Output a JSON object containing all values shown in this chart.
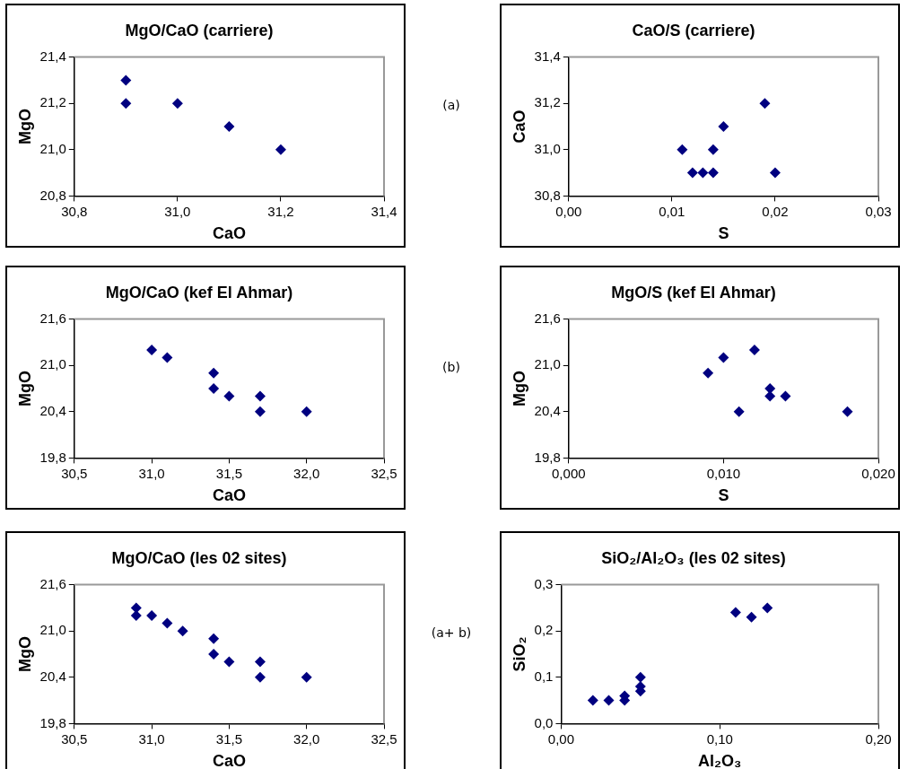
{
  "chart_data": [
    {
      "type": "scatter",
      "title": "MgO/CaO (carriere)",
      "xlabel": "CaO",
      "ylabel": "MgO",
      "marker": "diamond",
      "annotations": [
        "(a)"
      ],
      "series": [
        {
          "color": "#000080",
          "x": [
            30.9,
            30.9,
            31.0,
            31.1,
            31.2
          ],
          "values": [
            21.3,
            21.2,
            21.2,
            21.1,
            21.0
          ]
        }
      ],
      "xlim": [
        30.8,
        31.4
      ],
      "xticks": [
        {
          "value": 30.8,
          "label": "30,8"
        },
        {
          "value": 31.0,
          "label": "31,0"
        },
        {
          "value": 31.2,
          "label": "31,2"
        },
        {
          "value": 31.4,
          "label": "31,4"
        }
      ],
      "ylim": [
        20.8,
        21.4
      ],
      "yticks": [
        {
          "value": 20.8,
          "label": "20,8"
        },
        {
          "value": 21.0,
          "label": "21,0"
        },
        {
          "value": 21.2,
          "label": "21,2"
        },
        {
          "value": 21.4,
          "label": "21,4"
        }
      ]
    },
    {
      "type": "scatter",
      "title": "CaO/S (carriere)",
      "xlabel": "S",
      "ylabel": "CaO",
      "marker": "diamond",
      "series": [
        {
          "color": "#000080",
          "x": [
            0.011,
            0.012,
            0.013,
            0.014,
            0.014,
            0.015,
            0.019,
            0.02
          ],
          "values": [
            31.0,
            30.9,
            30.9,
            30.9,
            31.0,
            31.1,
            31.2,
            30.9
          ]
        }
      ],
      "xlim": [
        0,
        0.03
      ],
      "xticks": [
        {
          "value": 0,
          "label": "0,00"
        },
        {
          "value": 0.01,
          "label": "0,01"
        },
        {
          "value": 0.02,
          "label": "0,02"
        },
        {
          "value": 0.03,
          "label": "0,03"
        }
      ],
      "ylim": [
        30.8,
        31.4
      ],
      "yticks": [
        {
          "value": 30.8,
          "label": "30,8"
        },
        {
          "value": 31.0,
          "label": "31,0"
        },
        {
          "value": 31.2,
          "label": "31,2"
        },
        {
          "value": 31.4,
          "label": "31,4"
        }
      ]
    },
    {
      "type": "scatter",
      "title": "MgO/CaO (kef El Ahmar)",
      "xlabel": "CaO",
      "ylabel": "MgO",
      "marker": "diamond",
      "annotations": [
        "(b)"
      ],
      "series": [
        {
          "color": "#000080",
          "x": [
            31.0,
            31.1,
            31.4,
            31.4,
            31.5,
            31.7,
            31.7,
            32.0
          ],
          "values": [
            21.2,
            21.1,
            20.9,
            20.7,
            20.6,
            20.6,
            20.4,
            20.4
          ]
        }
      ],
      "xlim": [
        30.5,
        32.5
      ],
      "xticks": [
        {
          "value": 30.5,
          "label": "30,5"
        },
        {
          "value": 31.0,
          "label": "31,0"
        },
        {
          "value": 31.5,
          "label": "31,5"
        },
        {
          "value": 32.0,
          "label": "32,0"
        },
        {
          "value": 32.5,
          "label": "32,5"
        }
      ],
      "ylim": [
        19.8,
        21.6
      ],
      "yticks": [
        {
          "value": 19.8,
          "label": "19,8"
        },
        {
          "value": 20.4,
          "label": "20,4"
        },
        {
          "value": 21.0,
          "label": "21,0"
        },
        {
          "value": 21.6,
          "label": "21,6"
        }
      ]
    },
    {
      "type": "scatter",
      "title": "MgO/S (kef El Ahmar)",
      "xlabel": "S",
      "ylabel": "MgO",
      "marker": "diamond",
      "series": [
        {
          "color": "#000080",
          "x": [
            0.009,
            0.01,
            0.011,
            0.012,
            0.013,
            0.013,
            0.014,
            0.018
          ],
          "values": [
            20.9,
            21.1,
            20.4,
            21.2,
            20.7,
            20.6,
            20.6,
            20.4
          ]
        }
      ],
      "xlim": [
        0,
        0.02
      ],
      "xticks": [
        {
          "value": 0,
          "label": "0,000"
        },
        {
          "value": 0.01,
          "label": "0,010"
        },
        {
          "value": 0.02,
          "label": "0,020"
        }
      ],
      "ylim": [
        19.8,
        21.6
      ],
      "yticks": [
        {
          "value": 19.8,
          "label": "19,8"
        },
        {
          "value": 20.4,
          "label": "20,4"
        },
        {
          "value": 21.0,
          "label": "21,0"
        },
        {
          "value": 21.6,
          "label": "21,6"
        }
      ]
    },
    {
      "type": "scatter",
      "title": "MgO/CaO (les 02 sites)",
      "xlabel": "CaO",
      "ylabel": "MgO",
      "marker": "diamond",
      "annotations": [
        "(a+ b)"
      ],
      "series": [
        {
          "color": "#000080",
          "x": [
            30.9,
            30.9,
            31.0,
            31.1,
            31.2,
            31.4,
            31.4,
            31.5,
            31.7,
            31.7,
            32.0
          ],
          "values": [
            21.3,
            21.2,
            21.2,
            21.1,
            21.0,
            20.9,
            20.7,
            20.6,
            20.6,
            20.4,
            20.4
          ]
        }
      ],
      "xlim": [
        30.5,
        32.5
      ],
      "xticks": [
        {
          "value": 30.5,
          "label": "30,5"
        },
        {
          "value": 31.0,
          "label": "31,0"
        },
        {
          "value": 31.5,
          "label": "31,5"
        },
        {
          "value": 32.0,
          "label": "32,0"
        },
        {
          "value": 32.5,
          "label": "32,5"
        }
      ],
      "ylim": [
        19.8,
        21.6
      ],
      "yticks": [
        {
          "value": 19.8,
          "label": "19,8"
        },
        {
          "value": 20.4,
          "label": "20,4"
        },
        {
          "value": 21.0,
          "label": "21,0"
        },
        {
          "value": 21.6,
          "label": "21,6"
        }
      ]
    },
    {
      "type": "scatter",
      "title": "SiO₂/Al₂O₃ (les 02 sites)",
      "xlabel": "Al₂O₃",
      "ylabel": "SiO₂",
      "marker": "diamond",
      "series": [
        {
          "color": "#000080",
          "x": [
            0.02,
            0.03,
            0.04,
            0.04,
            0.05,
            0.05,
            0.05,
            0.11,
            0.12,
            0.13
          ],
          "values": [
            0.05,
            0.05,
            0.06,
            0.05,
            0.1,
            0.08,
            0.07,
            0.24,
            0.23,
            0.25
          ]
        }
      ],
      "xlim": [
        0,
        0.2
      ],
      "xticks": [
        {
          "value": 0,
          "label": "0,00"
        },
        {
          "value": 0.1,
          "label": "0,10"
        },
        {
          "value": 0.2,
          "label": "0,20"
        }
      ],
      "ylim": [
        0,
        0.3
      ],
      "yticks": [
        {
          "value": 0,
          "label": "0,0"
        },
        {
          "value": 0.1,
          "label": "0,1"
        },
        {
          "value": 0.2,
          "label": "0,2"
        },
        {
          "value": 0.3,
          "label": "0,3"
        }
      ]
    }
  ]
}
